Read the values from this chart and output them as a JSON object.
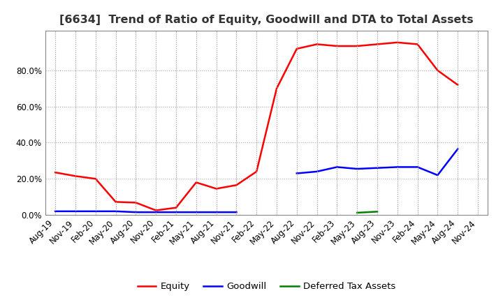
{
  "title": "[6634]  Trend of Ratio of Equity, Goodwill and DTA to Total Assets",
  "x_labels": [
    "Aug-19",
    "Nov-19",
    "Feb-20",
    "May-20",
    "Aug-20",
    "Nov-20",
    "Feb-21",
    "May-21",
    "Aug-21",
    "Nov-21",
    "Feb-22",
    "May-22",
    "Aug-22",
    "Nov-22",
    "Feb-23",
    "May-23",
    "Aug-23",
    "Nov-23",
    "Feb-24",
    "May-24",
    "Aug-24",
    "Nov-24"
  ],
  "equity_vals": [
    0.235,
    0.215,
    0.2,
    0.072,
    0.068,
    0.025,
    0.04,
    0.18,
    0.145,
    0.165,
    0.24,
    0.7,
    0.92,
    0.945,
    0.935,
    0.935,
    0.945,
    0.955,
    0.945,
    0.8,
    0.72,
    null
  ],
  "goodwill_vals": [
    0.02,
    0.02,
    0.02,
    0.02,
    0.015,
    0.015,
    0.015,
    0.015,
    0.015,
    0.015,
    null,
    null,
    0.23,
    0.24,
    0.265,
    0.255,
    0.26,
    0.265,
    0.265,
    0.22,
    0.365,
    null
  ],
  "dta_vals": [
    null,
    null,
    null,
    null,
    null,
    null,
    null,
    null,
    null,
    null,
    null,
    null,
    null,
    null,
    null,
    0.012,
    0.018,
    null,
    null,
    null,
    null,
    null
  ],
  "equity_color": "#FF0000",
  "goodwill_color": "#0000FF",
  "dta_color": "#008000",
  "ylim": [
    0.0,
    1.02
  ],
  "yticks": [
    0.0,
    0.2,
    0.4,
    0.6,
    0.8
  ],
  "bg_color": "#FFFFFF",
  "plot_bg_color": "#FFFFFF",
  "grid_color": "#AAAAAA",
  "legend_labels": [
    "Equity",
    "Goodwill",
    "Deferred Tax Assets"
  ],
  "line_width": 1.8,
  "title_fontsize": 11.5,
  "tick_fontsize": 8.5
}
